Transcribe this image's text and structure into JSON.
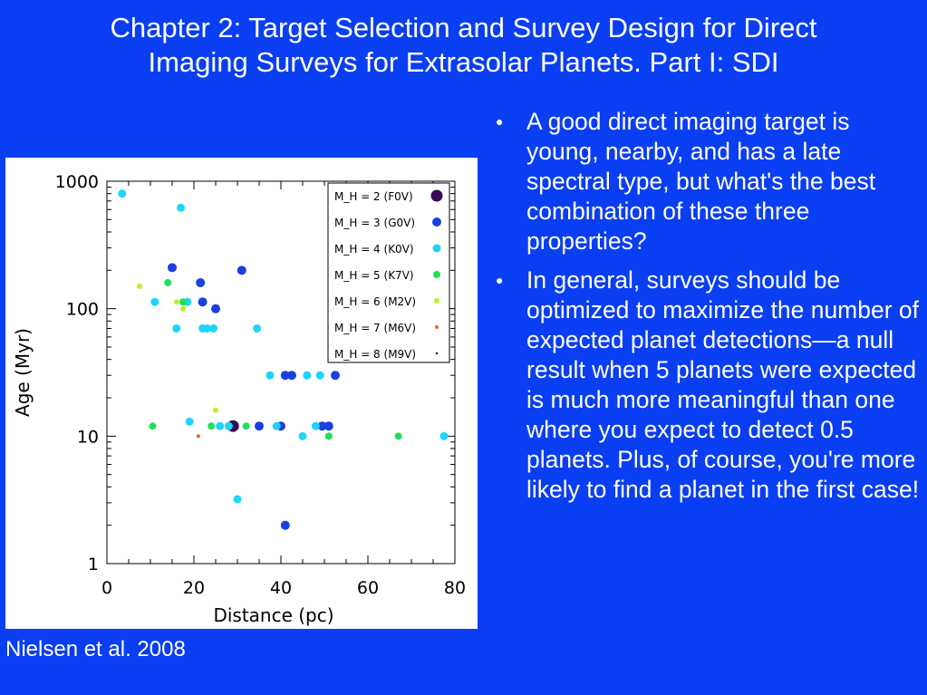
{
  "slide": {
    "title_line1": "Chapter 2: Target Selection and Survey Design for Direct",
    "title_line2": "Imaging Surveys for Extrasolar Planets.  Part I: SDI",
    "caption": "Nielsen et al. 2008",
    "bullets": [
      "A good direct imaging target is young, nearby, and has a late spectral type, but what's the best combination of these three properties?",
      "In general, surveys should be optimized to maximize the number of expected planet detections—a null result when 5 planets were expected is much more meaningful than one where you expect to detect 0.5 planets.  Plus, of course, you're more likely to find a planet in the first case!"
    ]
  },
  "chart_data": {
    "type": "scatter",
    "xlabel": "Distance (pc)",
    "ylabel": "Age  (Myr)",
    "xlim": [
      0,
      80
    ],
    "ylim": [
      1,
      1000
    ],
    "yscale": "log",
    "xticks": [
      "0",
      "20",
      "40",
      "60",
      "80"
    ],
    "yticks": [
      "1",
      "10",
      "100",
      "1000"
    ],
    "legend_position": "top-right",
    "series": [
      {
        "name": "M_H = 2 (F0V)",
        "color": "#3a0a52",
        "size": 6.5,
        "points": [
          [
            29,
            12
          ]
        ]
      },
      {
        "name": "M_H = 3 (G0V)",
        "color": "#1b3fe0",
        "size": 5,
        "points": [
          [
            15,
            210
          ],
          [
            21.5,
            160
          ],
          [
            31,
            200
          ],
          [
            22,
            113
          ],
          [
            25,
            100
          ],
          [
            41,
            30
          ],
          [
            42.5,
            30
          ],
          [
            52.5,
            30
          ],
          [
            40,
            12
          ],
          [
            49.5,
            12
          ],
          [
            51,
            12
          ],
          [
            35,
            12
          ],
          [
            41,
            2
          ]
        ]
      },
      {
        "name": "M_H = 4 (K0V)",
        "color": "#1ed4f8",
        "size": 4.5,
        "points": [
          [
            3.5,
            800
          ],
          [
            17,
            620
          ],
          [
            11,
            113
          ],
          [
            18.5,
            113
          ],
          [
            16,
            70
          ],
          [
            22,
            70
          ],
          [
            23,
            70
          ],
          [
            24.5,
            70
          ],
          [
            34.5,
            70
          ],
          [
            37.5,
            30
          ],
          [
            46,
            30
          ],
          [
            49,
            30
          ],
          [
            19,
            13
          ],
          [
            26,
            12
          ],
          [
            28,
            12
          ],
          [
            39,
            12
          ],
          [
            45,
            10
          ],
          [
            48,
            12
          ],
          [
            30,
            3.2
          ],
          [
            77.5,
            10
          ]
        ]
      },
      {
        "name": "M_H = 5 (K7V)",
        "color": "#1ee05a",
        "size": 4,
        "points": [
          [
            14,
            160
          ],
          [
            17.5,
            113
          ],
          [
            10.5,
            12
          ],
          [
            24,
            12
          ],
          [
            32,
            12
          ],
          [
            51,
            10
          ],
          [
            67,
            10
          ]
        ]
      },
      {
        "name": "M_H = 6 (M2V)",
        "color": "#b8f030",
        "size": 3,
        "points": [
          [
            7.5,
            150
          ],
          [
            16,
            113
          ],
          [
            17.5,
            100
          ],
          [
            25,
            16
          ]
        ]
      },
      {
        "name": "M_H = 7 (M6V)",
        "color": "#f06020",
        "size": 2,
        "points": [
          [
            21,
            10
          ]
        ]
      },
      {
        "name": "M_H = 8 (M9V)",
        "color": "#000000",
        "size": 1.2,
        "points": []
      }
    ]
  }
}
